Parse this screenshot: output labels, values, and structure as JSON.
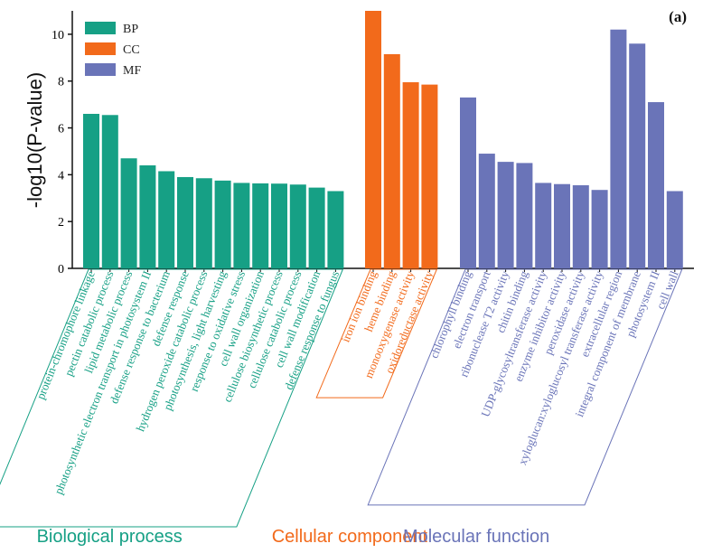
{
  "chart_data": {
    "type": "bar",
    "panel_label": "(a)",
    "ylabel": "-log10(P-value)",
    "ylim": [
      0,
      11
    ],
    "yticks": [
      0,
      2,
      4,
      6,
      8,
      10
    ],
    "legend": [
      {
        "key": "BP",
        "label": "BP",
        "color": "#16a085"
      },
      {
        "key": "CC",
        "label": "CC",
        "color": "#f26a1b"
      },
      {
        "key": "MF",
        "label": "MF",
        "color": "#6a74b8"
      }
    ],
    "groups": [
      {
        "key": "BP",
        "title": "Biological process",
        "color": "#16a085",
        "categories": [
          "protein-chromophore linkage",
          "pectin catabolic process",
          "lipid metabolic process",
          "photosynthetic electron transport in photosystem II",
          "defense response to bacterium",
          "defense response",
          "hydrogen peroxide catabolic process",
          "photosynthesis, light harvesting",
          "response to oxidative stress",
          "cell wall organization",
          "cellulose biosynthetic process",
          "cellulose catabolic process",
          "cell wall modification",
          "defense response to fungus"
        ],
        "values": [
          6.6,
          6.55,
          4.7,
          4.4,
          4.15,
          3.9,
          3.85,
          3.75,
          3.65,
          3.63,
          3.62,
          3.58,
          3.45,
          3.3
        ]
      },
      {
        "key": "CC",
        "title": "Cellular component",
        "color": "#f26a1b",
        "categories": [
          "iron ion binding",
          "heme binding",
          "monooxygenase activity",
          "oxidoreductase activity"
        ],
        "values": [
          11.0,
          9.15,
          7.95,
          7.85
        ]
      },
      {
        "key": "MF",
        "title": "Molecular function",
        "color": "#6a74b8",
        "categories": [
          "chlorophyll binding",
          "electron transport",
          "ribonuclease T2 activity",
          "chitin binding",
          "UDP-glycosyltransferase activity",
          "enzyme inhibitor activity",
          "peroxidase activity",
          "xyloglucan:xyloglucosyl transferase activity",
          "extracellular region",
          "integral component of membrane",
          "photosystem II",
          "cell wall"
        ],
        "values": [
          7.3,
          4.9,
          4.55,
          4.5,
          3.65,
          3.6,
          3.55,
          3.35,
          10.2,
          9.6,
          7.1,
          3.3
        ]
      }
    ]
  }
}
